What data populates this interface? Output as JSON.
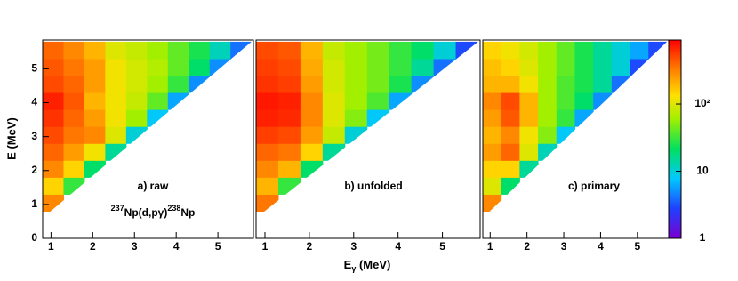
{
  "chart_data": {
    "type": "heatmap",
    "y_label": "E (MeV)",
    "x_label": {
      "main": "E",
      "sub": "γ",
      "unit": " (MeV)"
    },
    "xlim": [
      0.8,
      5.85
    ],
    "ylim": [
      0,
      5.85
    ],
    "xticks": [
      1,
      2,
      3,
      4,
      5
    ],
    "yticks": [
      0,
      1,
      2,
      3,
      4,
      5
    ],
    "x_bins": [
      0.8,
      1.3,
      1.8,
      2.3,
      2.8,
      3.3,
      3.8,
      4.3,
      4.8,
      5.3,
      5.8
    ],
    "y_bins": [
      0.8,
      1.3,
      1.8,
      2.3,
      2.8,
      3.3,
      3.8,
      4.3,
      4.8,
      5.3,
      5.8
    ],
    "zlim": [
      1,
      900
    ],
    "z_log": true,
    "zticks": [
      1,
      10,
      {
        "value": 100,
        "label": "10²"
      }
    ],
    "reaction": [
      {
        "text": "237",
        "sup": true
      },
      {
        "text": "Np(d,pγ)",
        "sup": false
      },
      {
        "text": "238",
        "sup": true
      },
      {
        "text": "Np",
        "sup": false
      }
    ],
    "panels": [
      {
        "label": "a) raw",
        "z": [
          [
            300,
            null,
            null,
            null,
            null,
            null,
            null,
            null,
            null,
            null
          ],
          [
            150,
            30,
            null,
            null,
            null,
            null,
            null,
            null,
            null,
            null
          ],
          [
            300,
            150,
            20,
            null,
            null,
            null,
            null,
            null,
            null,
            null
          ],
          [
            400,
            250,
            120,
            15,
            null,
            null,
            null,
            null,
            null,
            null
          ],
          [
            500,
            350,
            300,
            100,
            10,
            null,
            null,
            null,
            null,
            null
          ],
          [
            600,
            400,
            250,
            120,
            60,
            8,
            null,
            null,
            null,
            null
          ],
          [
            700,
            450,
            200,
            120,
            80,
            40,
            6,
            null,
            null,
            null
          ],
          [
            500,
            400,
            250,
            120,
            90,
            60,
            30,
            5,
            null,
            null
          ],
          [
            450,
            350,
            250,
            120,
            90,
            70,
            40,
            20,
            5,
            null
          ],
          [
            400,
            300,
            200,
            100,
            80,
            60,
            40,
            25,
            12,
            4
          ]
        ]
      },
      {
        "label": "b) unfolded",
        "z": [
          [
            350,
            null,
            null,
            null,
            null,
            null,
            null,
            null,
            null,
            null
          ],
          [
            200,
            30,
            null,
            null,
            null,
            null,
            null,
            null,
            null,
            null
          ],
          [
            300,
            200,
            20,
            null,
            null,
            null,
            null,
            null,
            null,
            null
          ],
          [
            400,
            350,
            150,
            15,
            null,
            null,
            null,
            null,
            null,
            null
          ],
          [
            550,
            500,
            250,
            80,
            10,
            null,
            null,
            null,
            null,
            null
          ],
          [
            700,
            650,
            300,
            100,
            50,
            8,
            null,
            null,
            null,
            null
          ],
          [
            750,
            700,
            300,
            100,
            60,
            35,
            6,
            null,
            null,
            null
          ],
          [
            600,
            550,
            250,
            90,
            60,
            45,
            25,
            5,
            null,
            null
          ],
          [
            550,
            500,
            220,
            90,
            60,
            45,
            30,
            15,
            4,
            null
          ],
          [
            500,
            450,
            200,
            80,
            60,
            45,
            30,
            20,
            10,
            3
          ]
        ]
      },
      {
        "label": "c) primary",
        "z": [
          [
            300,
            null,
            null,
            null,
            null,
            null,
            null,
            null,
            null,
            null
          ],
          [
            100,
            20,
            null,
            null,
            null,
            null,
            null,
            null,
            null,
            null
          ],
          [
            150,
            150,
            15,
            null,
            null,
            null,
            null,
            null,
            null,
            null
          ],
          [
            250,
            400,
            100,
            12,
            null,
            null,
            null,
            null,
            null,
            null
          ],
          [
            200,
            300,
            120,
            50,
            8,
            null,
            null,
            null,
            null,
            null
          ],
          [
            250,
            450,
            200,
            60,
            30,
            6,
            null,
            null,
            null,
            null
          ],
          [
            300,
            500,
            200,
            60,
            35,
            20,
            5,
            null,
            null,
            null
          ],
          [
            200,
            200,
            120,
            60,
            35,
            25,
            15,
            4,
            null,
            null
          ],
          [
            180,
            150,
            100,
            60,
            40,
            25,
            15,
            10,
            3,
            null
          ],
          [
            150,
            120,
            90,
            60,
            40,
            25,
            15,
            10,
            6,
            3
          ]
        ]
      }
    ]
  }
}
